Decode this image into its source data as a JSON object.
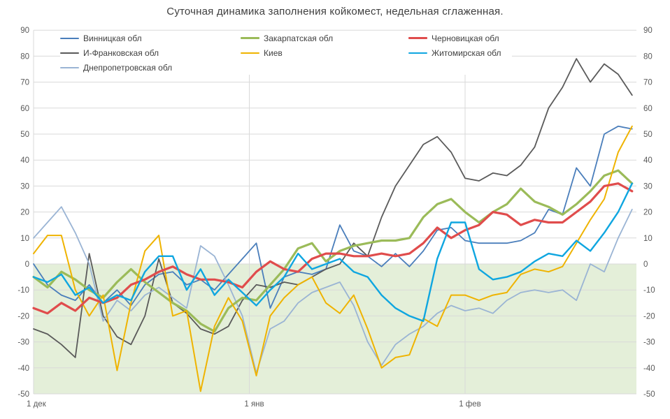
{
  "chart_data": {
    "type": "line",
    "title": "Суточная динамика заполнения койкомест, недельная сглаженная.",
    "x_axis": {
      "tick_labels": [
        "1 дек",
        "1 янв",
        "1 фев"
      ],
      "tick_days": [
        0,
        31,
        62
      ],
      "start_day": 0,
      "end_day": 86,
      "sample_step_days": 2
    },
    "y_axis": {
      "min": -50,
      "max": 90,
      "tick_step": 10,
      "labels_on_both_sides": true
    },
    "grid": {
      "horizontal": true,
      "vertical_at_days": [
        0,
        31,
        62
      ],
      "color": "#d9d9d9"
    },
    "shaded_band": {
      "value_from": 0,
      "value_to": -50,
      "color": "#e4efd9"
    },
    "legend_position": "top-left, three columns, white background over plot",
    "z_order": [
      0,
      3,
      6,
      1,
      4,
      2,
      5
    ],
    "series": [
      {
        "name": "Винницкая обл",
        "color": "#4a7ebb",
        "width": 1.8,
        "values": [
          0,
          -8,
          -12,
          -14,
          -8,
          -15,
          -10,
          -16,
          -8,
          -4,
          -3,
          -8,
          -6,
          -10,
          -4,
          2,
          8,
          -17,
          -5,
          -3,
          -4,
          -2,
          15,
          5,
          3,
          -1,
          4,
          -1,
          5,
          13,
          14,
          9,
          8,
          8,
          8,
          9,
          12,
          21,
          19,
          37,
          30,
          50,
          53,
          52
        ]
      },
      {
        "name": "Закарпатская обл",
        "color": "#9bbb59",
        "width": 3.2,
        "values": [
          -5,
          -9,
          -3,
          -6,
          -10,
          -13,
          -7,
          -2,
          -7,
          -11,
          -15,
          -18,
          -23,
          -26,
          -17,
          -13,
          -14,
          -8,
          -2,
          6,
          8,
          1,
          5,
          7,
          8,
          9,
          9,
          10,
          18,
          23,
          25,
          20,
          16,
          20,
          23,
          29,
          24,
          22,
          19,
          23,
          28,
          34,
          36,
          31
        ]
      },
      {
        "name": "Черновицкая обл",
        "color": "#e04c4c",
        "width": 3.2,
        "values": [
          -17,
          -19,
          -15,
          -18,
          -13,
          -15,
          -13,
          -8,
          -6,
          -3,
          -1,
          -4,
          -6,
          -6,
          -7,
          -9,
          -3,
          1,
          -2,
          -3,
          2,
          4,
          4,
          3,
          3,
          4,
          3,
          4,
          8,
          14,
          10,
          13,
          15,
          20,
          19,
          15,
          17,
          16,
          16,
          20,
          24,
          30,
          31,
          28
        ]
      },
      {
        "name": "И-Франковская обл",
        "color": "#5a5a5a",
        "width": 1.8,
        "values": [
          -25,
          -27,
          -31,
          -36,
          4,
          -20,
          -28,
          -31,
          -20,
          2,
          -15,
          -19,
          -25,
          -27,
          -24,
          -14,
          -8,
          -9,
          -7,
          -8,
          -5,
          -2,
          0,
          8,
          3,
          18,
          30,
          38,
          46,
          49,
          43,
          33,
          32,
          35,
          34,
          38,
          45,
          60,
          68,
          79,
          70,
          77,
          73,
          65
        ]
      },
      {
        "name": "Киев",
        "color": "#efb300",
        "width": 2.0,
        "values": [
          4,
          11,
          11,
          -10,
          -20,
          -12,
          -41,
          -15,
          5,
          11,
          -20,
          -18,
          -49,
          -24,
          -13,
          -22,
          -43,
          -20,
          -13,
          -8,
          -5,
          -15,
          -19,
          -12,
          -25,
          -40,
          -36,
          -35,
          -21,
          -24,
          -12,
          -12,
          -14,
          -12,
          -11,
          -4,
          -2,
          -3,
          -1,
          8,
          17,
          25,
          43,
          53
        ]
      },
      {
        "name": "Житомирская обл",
        "color": "#0fa6e0",
        "width": 2.4,
        "values": [
          -5,
          -7,
          -4,
          -12,
          -9,
          -15,
          -12,
          -14,
          -3,
          3,
          3,
          -10,
          -2,
          -12,
          -6,
          -11,
          -16,
          -10,
          -5,
          4,
          -2,
          0,
          2,
          -3,
          -5,
          -12,
          -17,
          -20,
          -22,
          2,
          16,
          16,
          -2,
          -6,
          -5,
          -3,
          1,
          4,
          3,
          9,
          5,
          12,
          20,
          31
        ]
      },
      {
        "name": "Днепропетровская обл",
        "color": "#9ab4d4",
        "width": 1.8,
        "values": [
          10,
          16,
          22,
          12,
          0,
          -22,
          -14,
          -18,
          -12,
          -9,
          -13,
          -17,
          7,
          3,
          -8,
          -20,
          -42,
          -25,
          -22,
          -15,
          -11,
          -9,
          -7,
          -16,
          -30,
          -39,
          -31,
          -27,
          -24,
          -19,
          -16,
          -18,
          -17,
          -19,
          -14,
          -11,
          -10,
          -11,
          -10,
          -14,
          0,
          -3,
          10,
          21
        ]
      }
    ]
  }
}
